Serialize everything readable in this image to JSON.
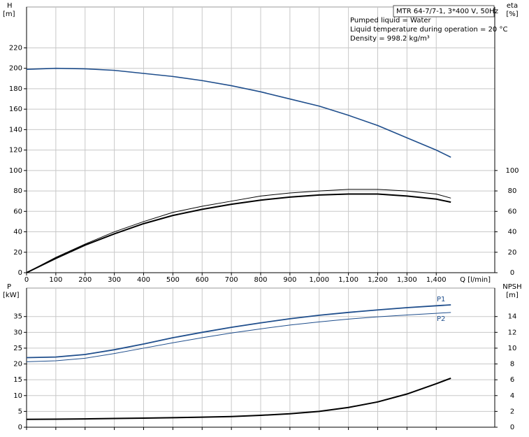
{
  "chart_data": [
    {
      "type": "line",
      "annotations": [
        "MTR 64-7/7-1, 3*400 V, 50Hz",
        "Pumped liquid = Water",
        "Liquid temperature during operation = 20 °C",
        "Density = 998.2 kg/m³"
      ],
      "ylabel": "H",
      "yunit": "[m]",
      "y2label": "eta",
      "y2unit": "[%]",
      "xlabel": "Q [l/min]",
      "x": [
        0,
        100,
        200,
        300,
        400,
        500,
        600,
        700,
        800,
        900,
        1000,
        1100,
        1200,
        1300,
        1400,
        1450
      ],
      "series": [
        {
          "color": "#1f4e8c",
          "width": 1.6,
          "values": [
            199,
            200,
            199.5,
            198,
            195,
            192,
            188,
            183,
            177,
            170,
            163,
            154,
            144,
            132,
            120,
            113
          ]
        },
        {
          "color": "#000000",
          "width": 1,
          "axis": "y2",
          "values": [
            0,
            15,
            28,
            40,
            50,
            59,
            65,
            70,
            75,
            78,
            80,
            81.5,
            81.5,
            80,
            77,
            73
          ]
        },
        {
          "color": "#000000",
          "width": 2,
          "axis": "y2",
          "values": [
            0,
            14,
            27,
            38,
            48,
            56,
            62,
            67,
            71,
            74,
            76,
            77,
            77,
            75,
            72,
            69
          ]
        }
      ],
      "xlim": [
        0,
        1600
      ],
      "xticks": [
        0,
        100,
        200,
        300,
        400,
        500,
        600,
        700,
        800,
        900,
        {
          "value": 1000,
          "label": "1,000"
        },
        {
          "value": 1100,
          "label": "1,100"
        },
        {
          "value": 1200,
          "label": "1,200"
        },
        {
          "value": 1300,
          "label": "1,300"
        },
        {
          "value": 1400,
          "label": "1,400"
        }
      ],
      "ylim": [
        0,
        260
      ],
      "yticks": [
        0,
        20,
        40,
        60,
        80,
        100,
        120,
        140,
        160,
        180,
        200,
        220
      ],
      "y2lim": [
        0,
        260
      ],
      "y2ticks": [
        0,
        20,
        40,
        60,
        80,
        100
      ],
      "grid": true
    },
    {
      "type": "line",
      "ylabel": "P",
      "yunit": "[kW]",
      "y2label": "NPSH",
      "y2unit": "[m]",
      "x": [
        0,
        100,
        200,
        300,
        400,
        500,
        600,
        700,
        800,
        900,
        1000,
        1100,
        1200,
        1300,
        1400,
        1450
      ],
      "series": [
        {
          "name": "P1",
          "color": "#1f4e8c",
          "width": 1.8,
          "values": [
            22,
            22.2,
            23,
            24.5,
            26.3,
            28.3,
            30,
            31.6,
            33,
            34.3,
            35.4,
            36.3,
            37.1,
            37.8,
            38.4,
            38.7
          ]
        },
        {
          "name": "P2",
          "color": "#1f4e8c",
          "width": 1,
          "values": [
            20.7,
            21,
            21.8,
            23.3,
            25,
            26.7,
            28.3,
            29.8,
            31.1,
            32.3,
            33.3,
            34.2,
            34.9,
            35.5,
            36,
            36.3
          ]
        },
        {
          "color": "#000000",
          "width": 2,
          "axis": "y2",
          "values": [
            1.0,
            1.02,
            1.05,
            1.1,
            1.15,
            1.2,
            1.27,
            1.35,
            1.5,
            1.7,
            2.0,
            2.5,
            3.2,
            4.2,
            5.5,
            6.2
          ]
        }
      ],
      "xlim": [
        0,
        1600
      ],
      "xticks": [
        0,
        100,
        200,
        300,
        400,
        500,
        600,
        700,
        800,
        900,
        1000,
        1100,
        1200,
        1300,
        1400
      ],
      "ylim": [
        0,
        44
      ],
      "yticks": [
        0,
        5,
        10,
        15,
        20,
        25,
        30,
        35
      ],
      "y2lim": [
        0,
        17.6
      ],
      "y2ticks": [
        0,
        2,
        4,
        6,
        8,
        10,
        12,
        14
      ],
      "grid": true
    }
  ]
}
